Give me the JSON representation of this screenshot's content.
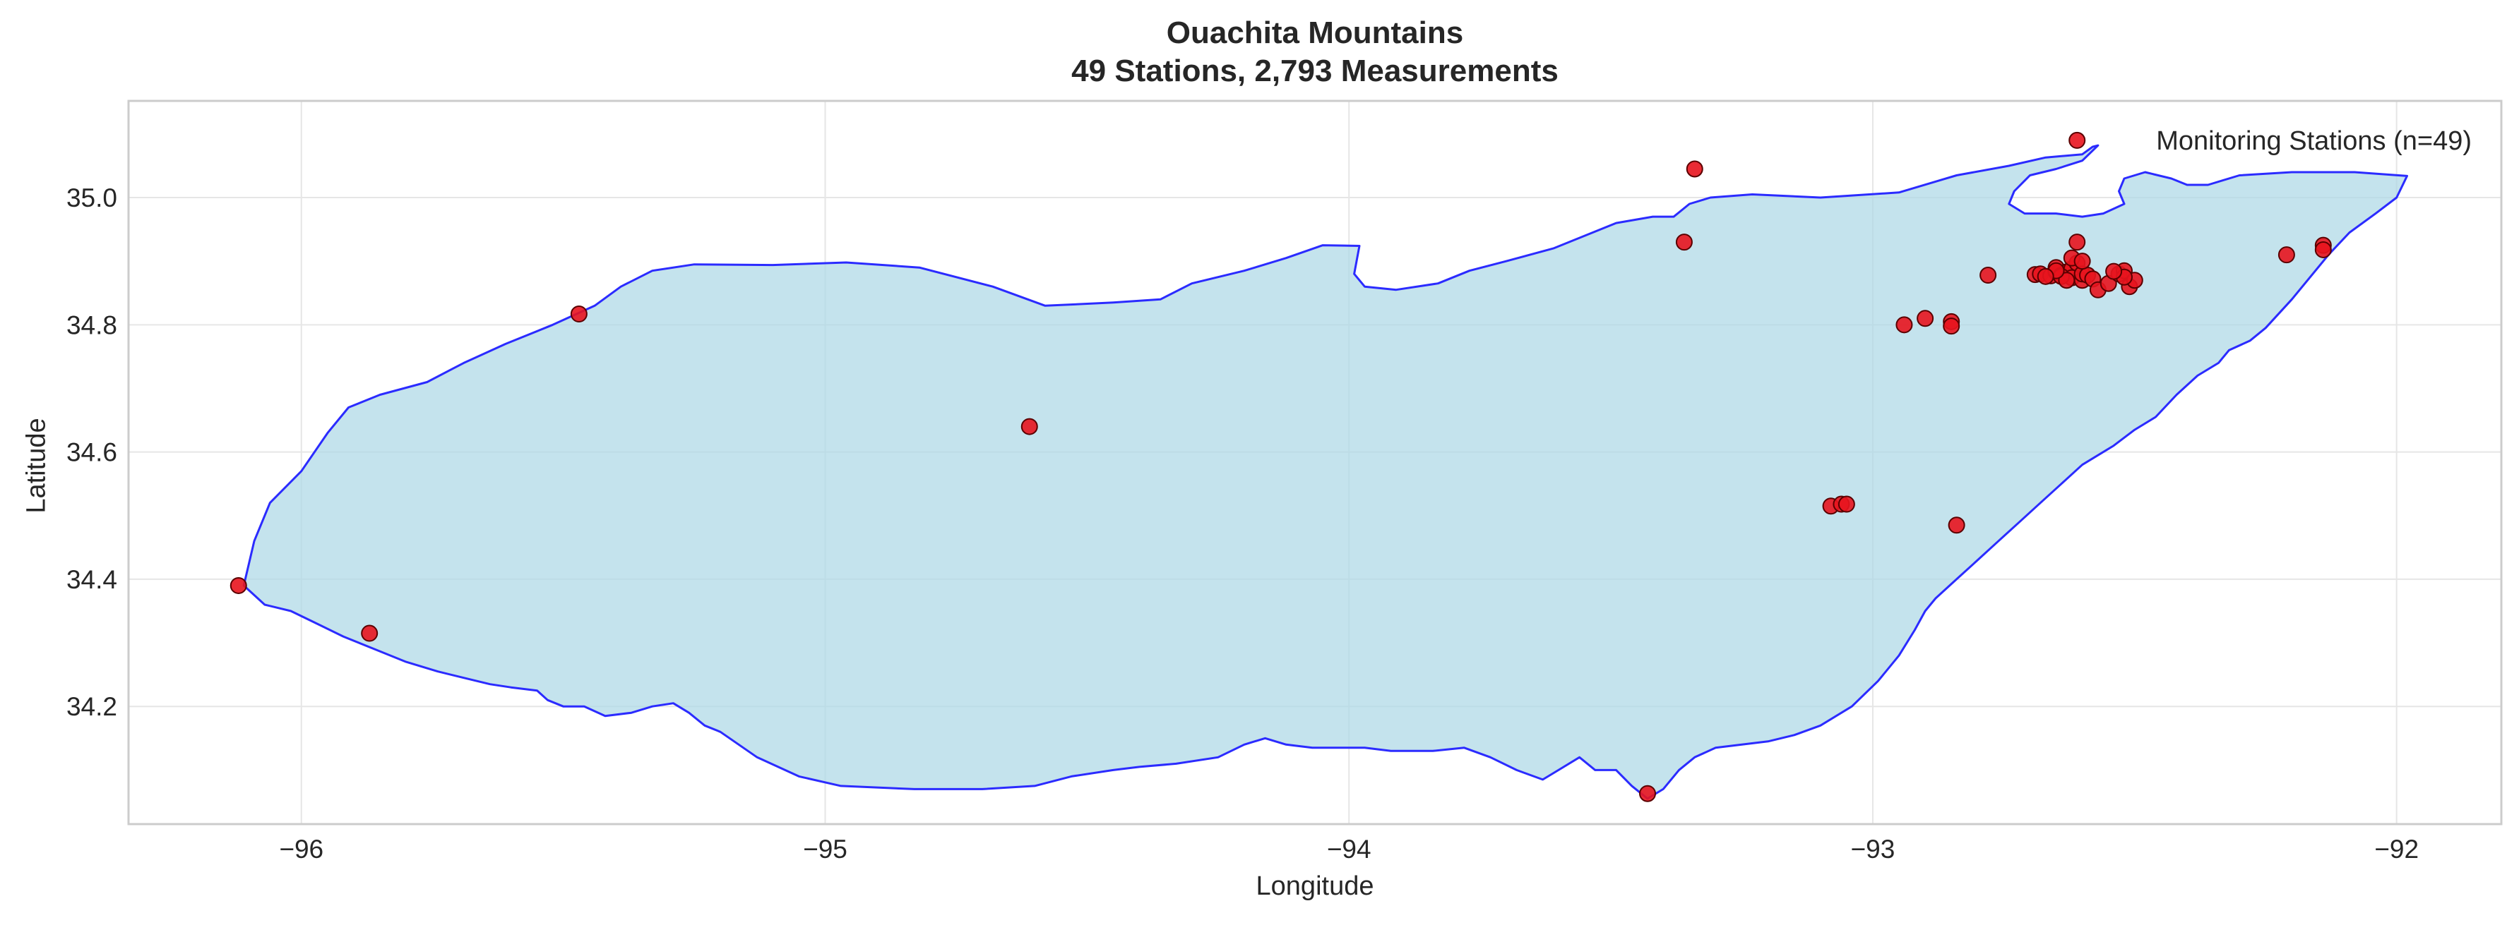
{
  "chart_data": {
    "type": "scatter",
    "title": "Ouachita Mountains",
    "subtitle": "49 Stations, 2,793 Measurements",
    "xlabel": "Longitude",
    "ylabel": "Latitude",
    "xlim": [
      -96.33,
      -91.8
    ],
    "ylim": [
      34.015,
      35.152
    ],
    "xticks": [
      -96,
      -95,
      -94,
      -93,
      -92
    ],
    "xtick_labels": [
      "−96",
      "−95",
      "−94",
      "−93",
      "−92"
    ],
    "yticks": [
      34.2,
      34.4,
      34.6,
      34.8,
      35.0
    ],
    "ytick_labels": [
      "34.2",
      "34.4",
      "34.6",
      "34.8",
      "35.0"
    ],
    "grid": true,
    "legend": {
      "label": "Monitoring Stations (n=49)",
      "position": "top-right"
    },
    "colors": {
      "region_fill": "#add8e6",
      "region_edge": "#2b2bff",
      "marker_fill": "#e8141e",
      "marker_edge": "#5a0000",
      "grid": "#e6e6e6",
      "frame": "#cccccc"
    },
    "region_outline": [
      [
        -96.11,
        34.39
      ],
      [
        -96.09,
        34.46
      ],
      [
        -96.06,
        34.52
      ],
      [
        -96.0,
        34.57
      ],
      [
        -95.95,
        34.63
      ],
      [
        -95.91,
        34.67
      ],
      [
        -95.85,
        34.69
      ],
      [
        -95.76,
        34.71
      ],
      [
        -95.69,
        34.74
      ],
      [
        -95.61,
        34.77
      ],
      [
        -95.52,
        34.8
      ],
      [
        -95.44,
        34.83
      ],
      [
        -95.39,
        34.86
      ],
      [
        -95.33,
        34.885
      ],
      [
        -95.25,
        34.895
      ],
      [
        -95.1,
        34.894
      ],
      [
        -94.96,
        34.898
      ],
      [
        -94.82,
        34.89
      ],
      [
        -94.68,
        34.86
      ],
      [
        -94.58,
        34.83
      ],
      [
        -94.45,
        34.835
      ],
      [
        -94.36,
        34.84
      ],
      [
        -94.3,
        34.865
      ],
      [
        -94.2,
        34.885
      ],
      [
        -94.12,
        34.905
      ],
      [
        -94.05,
        34.925
      ],
      [
        -93.98,
        34.924
      ],
      [
        -93.99,
        34.88
      ],
      [
        -93.97,
        34.86
      ],
      [
        -93.91,
        34.855
      ],
      [
        -93.83,
        34.865
      ],
      [
        -93.77,
        34.885
      ],
      [
        -93.7,
        34.9
      ],
      [
        -93.61,
        34.92
      ],
      [
        -93.55,
        34.94
      ],
      [
        -93.49,
        34.96
      ],
      [
        -93.42,
        34.97
      ],
      [
        -93.38,
        34.97
      ],
      [
        -93.35,
        34.99
      ],
      [
        -93.31,
        35.0
      ],
      [
        -93.23,
        35.005
      ],
      [
        -93.1,
        35.0
      ],
      [
        -92.95,
        35.008
      ],
      [
        -92.84,
        35.035
      ],
      [
        -92.74,
        35.05
      ],
      [
        -92.67,
        35.063
      ],
      [
        -92.6,
        35.068
      ],
      [
        -92.58,
        35.08
      ],
      [
        -92.57,
        35.082
      ],
      [
        -92.6,
        35.058
      ],
      [
        -92.65,
        35.045
      ],
      [
        -92.7,
        35.035
      ],
      [
        -92.73,
        35.01
      ],
      [
        -92.74,
        34.99
      ],
      [
        -92.71,
        34.975
      ],
      [
        -92.65,
        34.975
      ],
      [
        -92.6,
        34.97
      ],
      [
        -92.56,
        34.975
      ],
      [
        -92.52,
        34.99
      ],
      [
        -92.53,
        35.01
      ],
      [
        -92.52,
        35.03
      ],
      [
        -92.48,
        35.04
      ],
      [
        -92.43,
        35.03
      ],
      [
        -92.4,
        35.02
      ],
      [
        -92.36,
        35.02
      ],
      [
        -92.3,
        35.035
      ],
      [
        -92.2,
        35.04
      ],
      [
        -92.08,
        35.04
      ],
      [
        -91.98,
        35.034
      ],
      [
        -92.0,
        35.0
      ],
      [
        -92.04,
        34.975
      ],
      [
        -92.09,
        34.945
      ],
      [
        -92.13,
        34.91
      ],
      [
        -92.16,
        34.88
      ],
      [
        -92.2,
        34.84
      ],
      [
        -92.25,
        34.795
      ],
      [
        -92.28,
        34.775
      ],
      [
        -92.32,
        34.76
      ],
      [
        -92.34,
        34.74
      ],
      [
        -92.38,
        34.72
      ],
      [
        -92.42,
        34.69
      ],
      [
        -92.46,
        34.655
      ],
      [
        -92.5,
        34.635
      ],
      [
        -92.54,
        34.61
      ],
      [
        -92.6,
        34.58
      ],
      [
        -92.64,
        34.55
      ],
      [
        -92.68,
        34.52
      ],
      [
        -92.72,
        34.49
      ],
      [
        -92.76,
        34.46
      ],
      [
        -92.8,
        34.43
      ],
      [
        -92.84,
        34.4
      ],
      [
        -92.88,
        34.37
      ],
      [
        -92.9,
        34.35
      ],
      [
        -92.92,
        34.32
      ],
      [
        -92.95,
        34.28
      ],
      [
        -92.99,
        34.24
      ],
      [
        -93.04,
        34.2
      ],
      [
        -93.1,
        34.17
      ],
      [
        -93.15,
        34.155
      ],
      [
        -93.2,
        34.145
      ],
      [
        -93.25,
        34.14
      ],
      [
        -93.3,
        34.135
      ],
      [
        -93.34,
        34.12
      ],
      [
        -93.37,
        34.1
      ],
      [
        -93.4,
        34.07
      ],
      [
        -93.43,
        34.055
      ],
      [
        -93.46,
        34.075
      ],
      [
        -93.49,
        34.1
      ],
      [
        -93.53,
        34.1
      ],
      [
        -93.56,
        34.12
      ],
      [
        -93.6,
        34.1
      ],
      [
        -93.63,
        34.085
      ],
      [
        -93.68,
        34.1
      ],
      [
        -93.73,
        34.12
      ],
      [
        -93.78,
        34.135
      ],
      [
        -93.84,
        34.13
      ],
      [
        -93.88,
        34.13
      ],
      [
        -93.92,
        34.13
      ],
      [
        -93.97,
        34.135
      ],
      [
        -94.02,
        34.135
      ],
      [
        -94.07,
        34.135
      ],
      [
        -94.12,
        34.14
      ],
      [
        -94.16,
        34.15
      ],
      [
        -94.2,
        34.14
      ],
      [
        -94.25,
        34.12
      ],
      [
        -94.33,
        34.11
      ],
      [
        -94.4,
        34.105
      ],
      [
        -94.45,
        34.1
      ],
      [
        -94.53,
        34.09
      ],
      [
        -94.6,
        34.075
      ],
      [
        -94.7,
        34.07
      ],
      [
        -94.83,
        34.07
      ],
      [
        -94.97,
        34.075
      ],
      [
        -95.05,
        34.09
      ],
      [
        -95.13,
        34.12
      ],
      [
        -95.2,
        34.16
      ],
      [
        -95.23,
        34.17
      ],
      [
        -95.26,
        34.19
      ],
      [
        -95.29,
        34.205
      ],
      [
        -95.33,
        34.2
      ],
      [
        -95.37,
        34.19
      ],
      [
        -95.42,
        34.185
      ],
      [
        -95.46,
        34.2
      ],
      [
        -95.5,
        34.2
      ],
      [
        -95.53,
        34.21
      ],
      [
        -95.55,
        34.225
      ],
      [
        -95.6,
        34.23
      ],
      [
        -95.64,
        34.235
      ],
      [
        -95.69,
        34.245
      ],
      [
        -95.74,
        34.255
      ],
      [
        -95.8,
        34.27
      ],
      [
        -95.86,
        34.29
      ],
      [
        -95.92,
        34.31
      ],
      [
        -95.97,
        34.33
      ],
      [
        -96.02,
        34.35
      ],
      [
        -96.07,
        34.36
      ],
      [
        -96.11,
        34.39
      ]
    ],
    "stations": [
      [
        -96.12,
        34.39
      ],
      [
        -95.87,
        34.315
      ],
      [
        -95.47,
        34.817
      ],
      [
        -94.61,
        34.64
      ],
      [
        -93.34,
        35.045
      ],
      [
        -93.36,
        34.93
      ],
      [
        -93.43,
        34.063
      ],
      [
        -93.08,
        34.515
      ],
      [
        -93.06,
        34.518
      ],
      [
        -93.05,
        34.518
      ],
      [
        -92.84,
        34.485
      ],
      [
        -92.61,
        35.09
      ],
      [
        -92.94,
        34.8
      ],
      [
        -92.9,
        34.81
      ],
      [
        -92.85,
        34.805
      ],
      [
        -92.85,
        34.798
      ],
      [
        -92.78,
        34.878
      ],
      [
        -92.69,
        34.879
      ],
      [
        -92.68,
        34.88
      ],
      [
        -92.66,
        34.877
      ],
      [
        -92.65,
        34.883
      ],
      [
        -92.65,
        34.89
      ],
      [
        -92.64,
        34.878
      ],
      [
        -92.63,
        34.883
      ],
      [
        -92.62,
        34.888
      ],
      [
        -92.62,
        34.874
      ],
      [
        -92.61,
        34.897
      ],
      [
        -92.61,
        34.93
      ],
      [
        -92.6,
        34.87
      ],
      [
        -92.6,
        34.88
      ],
      [
        -92.59,
        34.878
      ],
      [
        -92.58,
        34.872
      ],
      [
        -92.57,
        34.855
      ],
      [
        -92.55,
        34.865
      ],
      [
        -92.53,
        34.88
      ],
      [
        -92.52,
        34.885
      ],
      [
        -92.51,
        34.86
      ],
      [
        -92.5,
        34.87
      ],
      [
        -92.52,
        34.875
      ],
      [
        -92.64,
        34.876
      ],
      [
        -92.63,
        34.87
      ],
      [
        -92.65,
        34.885
      ],
      [
        -92.62,
        34.905
      ],
      [
        -92.67,
        34.876
      ],
      [
        -92.21,
        34.91
      ],
      [
        -92.14,
        34.925
      ],
      [
        -92.14,
        34.918
      ],
      [
        -92.54,
        34.884
      ],
      [
        -92.6,
        34.9
      ]
    ]
  }
}
